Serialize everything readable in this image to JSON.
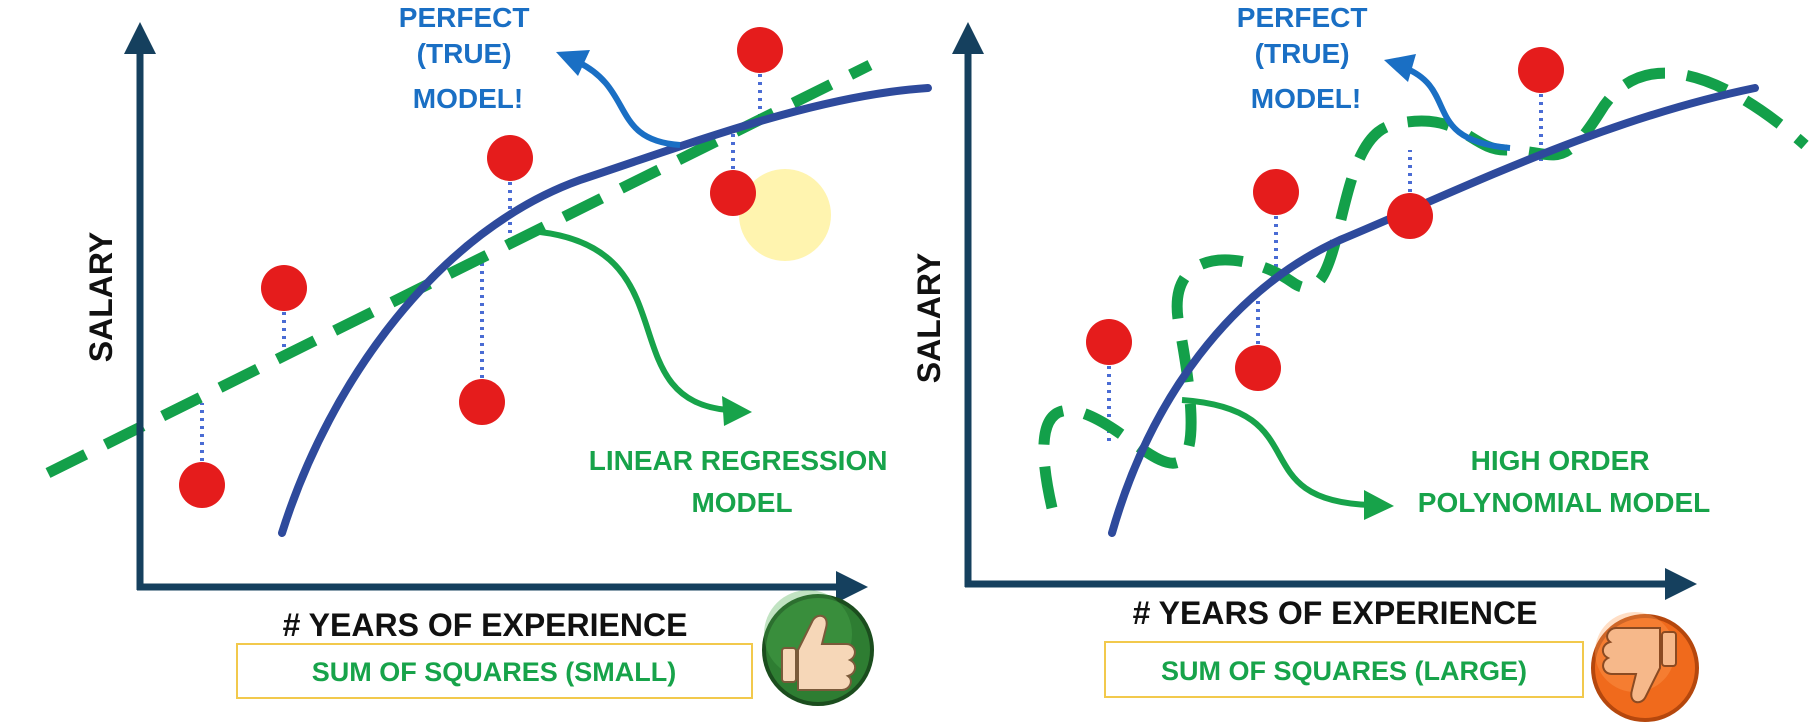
{
  "colors": {
    "axis": "#15405e",
    "true_curve": "#2e4a9c",
    "model_curve": "#13a04a",
    "point": "#e51c1c",
    "residual": "#4a6cd4",
    "annotation_blue": "#1a6fc4",
    "annotation_green": "#17a34a",
    "box_border": "#f2c94c",
    "thumb_up_bg": "#2e7d32",
    "thumb_down_bg": "#f06a1c"
  },
  "left_panel": {
    "y_axis_label": "SALARY",
    "x_axis_label": "# YEARS OF EXPERIENCE",
    "true_model_label": [
      "PERFECT",
      "(TRUE)",
      "MODEL!"
    ],
    "model_label": [
      "LINEAR REGRESSION",
      "MODEL"
    ],
    "result_label": "SUM OF SQUARES (SMALL)",
    "verdict_icon": "thumbs-up-icon"
  },
  "right_panel": {
    "y_axis_label": "SALARY",
    "x_axis_label": "# YEARS OF EXPERIENCE",
    "true_model_label": [
      "PERFECT",
      "(TRUE)",
      "MODEL!"
    ],
    "model_label": [
      "HIGH ORDER",
      "POLYNOMIAL MODEL"
    ],
    "result_label": "SUM OF SQUARES (LARGE)",
    "verdict_icon": "thumbs-down-icon"
  }
}
